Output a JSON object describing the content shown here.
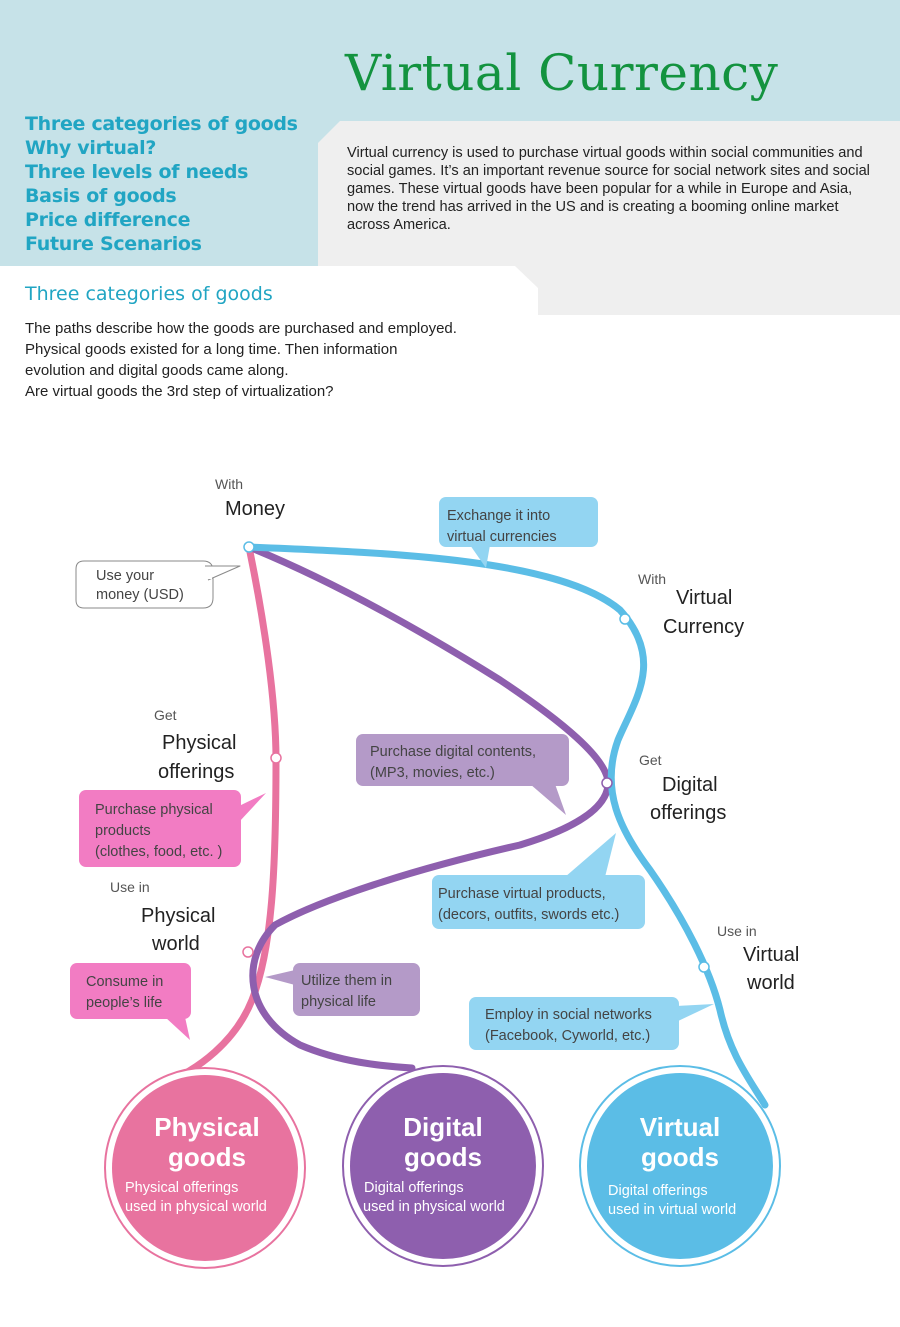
{
  "header": {
    "title": "Virtual Currency",
    "nav": [
      "Three categories of goods",
      "Why virtual?",
      "Three levels of needs",
      "Basis of goods",
      "Price difference",
      "Future Scenarios"
    ],
    "intro": "Virtual currency is used to purchase virtual goods within social communities and social games. It’s an important revenue source for social network sites and social games. These virtual goods have been popular for a while in Europe and Asia, now the trend has arrived in the US and is creating a booming online market across America."
  },
  "section": {
    "title": "Three categories of goods",
    "desc": [
      "The paths describe how the goods are purchased and employed.",
      "Physical goods existed for a long time. Then information",
      "evolution and digital goods came along.",
      "Are virtual goods the 3rd step of virtualization?"
    ]
  },
  "diagram": {
    "colors": {
      "physical": "#e8739f",
      "digital": "#8e5fae",
      "virtual": "#5bbde6",
      "physical_callout": "#f27cc3",
      "digital_callout": "#b49ac8",
      "virtual_callout": "#93d5f2"
    },
    "nodes": {
      "money": {
        "small": "With",
        "big": [
          "Money"
        ]
      },
      "virtual_currency": {
        "small": "With",
        "big": [
          "Virtual",
          "Currency"
        ]
      },
      "physical_offerings": {
        "small": "Get",
        "big": [
          "Physical",
          "offerings"
        ]
      },
      "digital_offerings": {
        "small": "Get",
        "big": [
          "Digital",
          "offerings"
        ]
      },
      "physical_world": {
        "small": "Use in",
        "big": [
          "Physical",
          "world"
        ]
      },
      "virtual_world": {
        "small": "Use in",
        "big": [
          "Virtual",
          "world"
        ]
      }
    },
    "callouts": {
      "use_money": [
        "Use your",
        "money (USD)"
      ],
      "exchange": [
        "Exchange it into",
        "virtual currencies"
      ],
      "purchase_digital": [
        "Purchase digital contents,",
        "(MP3, movies, etc.)"
      ],
      "purchase_physical": [
        "Purchase physical",
        "products",
        "(clothes, food, etc. )"
      ],
      "purchase_virtual": [
        "Purchase virtual products,",
        "(decors, outfits, swords etc.)"
      ],
      "consume": [
        "Consume in",
        "people’s life"
      ],
      "utilize": [
        "Utilize them in",
        "physical life"
      ],
      "employ": [
        "Employ in social networks",
        "(Facebook, Cyworld, etc.)"
      ]
    },
    "goods": {
      "physical": {
        "title": [
          "Physical",
          "goods"
        ],
        "desc": [
          "Physical offerings",
          "used in physical world"
        ]
      },
      "digital": {
        "title": [
          "Digital",
          "goods"
        ],
        "desc": [
          "Digital offerings",
          "used in physical world"
        ]
      },
      "virtual": {
        "title": [
          "Virtual",
          "goods"
        ],
        "desc": [
          "Digital offerings",
          "used in virtual world"
        ]
      }
    }
  }
}
